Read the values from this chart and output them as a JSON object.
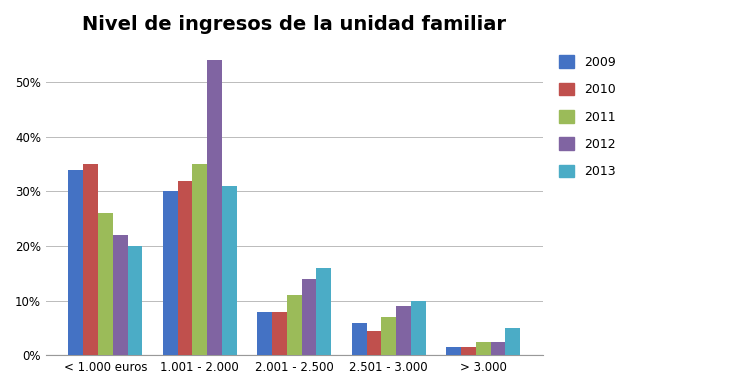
{
  "title": "Nivel de ingresos de la unidad familiar",
  "categories": [
    "< 1.000 euros",
    "1.001 - 2.000",
    "2.001 - 2.500",
    "2.501 - 3.000",
    "> 3.000"
  ],
  "series": {
    "2009": [
      34,
      30,
      8,
      6,
      1.5
    ],
    "2010": [
      35,
      32,
      8,
      4.5,
      1.5
    ],
    "2011": [
      26,
      35,
      11,
      7,
      2.5
    ],
    "2012": [
      22,
      54,
      14,
      9,
      2.5
    ],
    "2013": [
      20,
      31,
      16,
      10,
      5
    ]
  },
  "colors": {
    "2009": "#4472C4",
    "2010": "#C0504D",
    "2011": "#9BBB59",
    "2012": "#8064A2",
    "2013": "#4BACC6"
  },
  "ylim": [
    0,
    57
  ],
  "yticks": [
    0,
    10,
    20,
    30,
    40,
    50
  ],
  "background_color": "#FFFFFF",
  "grid_color": "#BBBBBB",
  "title_fontsize": 14,
  "legend_years": [
    "2009",
    "2010",
    "2011",
    "2012",
    "2013"
  ]
}
